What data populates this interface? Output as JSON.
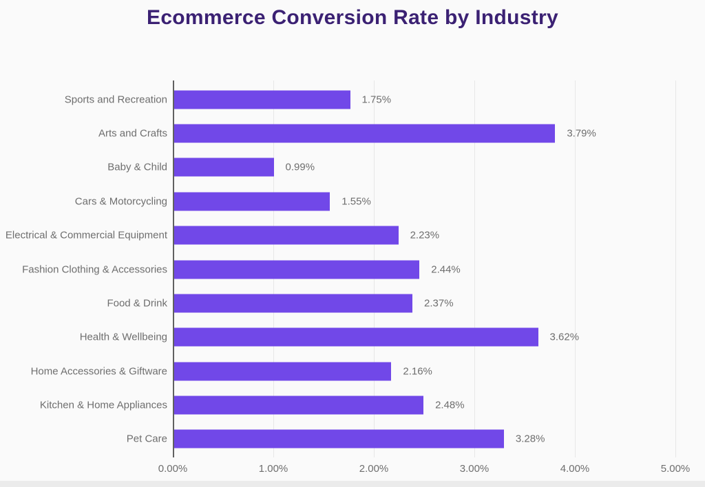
{
  "title": "Ecommerce Conversion Rate by Industry",
  "chart_data": {
    "type": "bar",
    "orientation": "horizontal",
    "title": "Ecommerce Conversion Rate by Industry",
    "categories": [
      "Sports and Recreation",
      "Arts and Crafts",
      "Baby & Child",
      "Cars & Motorcycling",
      "Electrical & Commercial Equipment",
      "Fashion Clothing & Accessories",
      "Food & Drink",
      "Health & Wellbeing",
      "Home Accessories & Giftware",
      "Kitchen & Home Appliances",
      "Pet Care"
    ],
    "values": [
      1.75,
      3.79,
      0.99,
      1.55,
      2.23,
      2.44,
      2.37,
      3.62,
      2.16,
      2.48,
      3.28
    ],
    "value_labels": [
      "1.75%",
      "3.79%",
      "0.99%",
      "1.55%",
      "2.23%",
      "2.44%",
      "2.37%",
      "3.62%",
      "2.16%",
      "2.48%",
      "3.28%"
    ],
    "xlabel": "",
    "ylabel": "",
    "xlim": [
      0,
      5
    ],
    "x_ticks": [
      0,
      1,
      2,
      3,
      4,
      5
    ],
    "x_tick_labels": [
      "0.00%",
      "1.00%",
      "2.00%",
      "3.00%",
      "4.00%",
      "5.00%"
    ],
    "grid": true,
    "legend": false
  },
  "colors": {
    "bar": "#7148e8",
    "title": "#3b2173",
    "label": "#6e6e6e",
    "gridline": "#e7e7e7",
    "axis": "#606060",
    "background": "#fafafa",
    "bottom_strip": "#ebebeb"
  }
}
